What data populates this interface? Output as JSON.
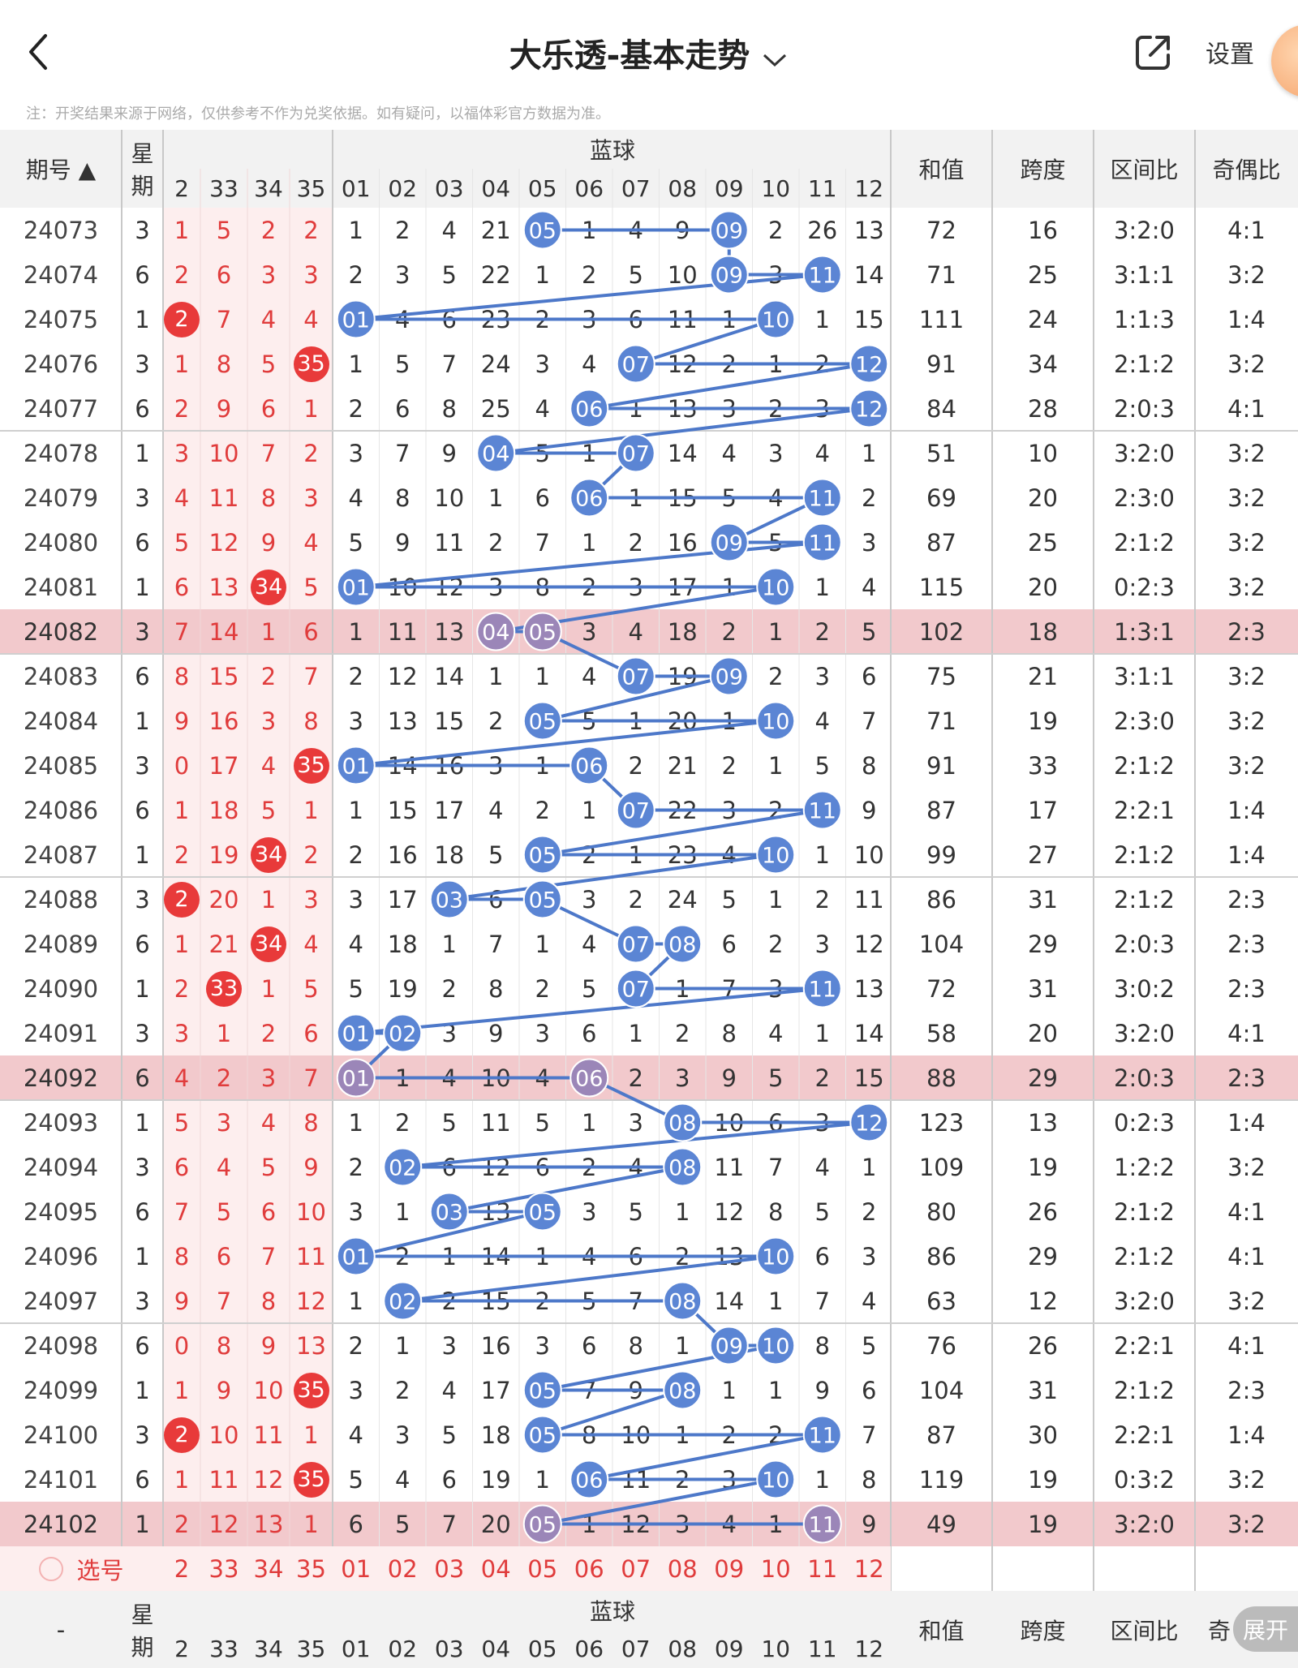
{
  "header": {
    "title": "大乐透-基本走势",
    "settings": "设置",
    "share_icon": "share-icon",
    "back_icon": "back-icon"
  },
  "notice": "注：开奖结果来源于网络，仅供参考不作为兑奖依据。如有疑问，以福体彩官方数据为准。",
  "table": {
    "col_period": "期号",
    "col_week": "星期",
    "col_blue": "蓝球",
    "col_sum": "和值",
    "col_span": "跨度",
    "col_ratio": "区间比",
    "col_oddeven": "奇偶比",
    "front_cols": [
      "2",
      "33",
      "34",
      "35"
    ],
    "blue_cols": [
      "01",
      "02",
      "03",
      "04",
      "05",
      "06",
      "07",
      "08",
      "09",
      "10",
      "11",
      "12"
    ],
    "select_label": "选号",
    "footer_period": "-",
    "footer_oddeven": "奇",
    "expand": "展开",
    "rows": [
      {
        "period": "24073",
        "week": "3",
        "front": [
          "1",
          "5",
          "2",
          "2"
        ],
        "fhit": [],
        "blue": [
          "1",
          "2",
          "4",
          "21",
          "05",
          "1",
          "4",
          "9",
          "09",
          "2",
          "26",
          "13"
        ],
        "bhit": [
          4,
          8
        ],
        "sum": "72",
        "span": "16",
        "ratio": "3:2:0",
        "oe": "4:1"
      },
      {
        "period": "24074",
        "week": "6",
        "front": [
          "2",
          "6",
          "3",
          "3"
        ],
        "fhit": [],
        "blue": [
          "2",
          "3",
          "5",
          "22",
          "1",
          "2",
          "5",
          "10",
          "09",
          "3",
          "11",
          "14"
        ],
        "bhit": [
          8,
          10
        ],
        "sum": "71",
        "span": "25",
        "ratio": "3:1:1",
        "oe": "3:2"
      },
      {
        "period": "24075",
        "week": "1",
        "front": [
          "2",
          "7",
          "4",
          "4"
        ],
        "fhit": [
          0
        ],
        "blue": [
          "01",
          "4",
          "6",
          "23",
          "2",
          "3",
          "6",
          "11",
          "1",
          "10",
          "1",
          "15"
        ],
        "bhit": [
          0,
          9
        ],
        "sum": "111",
        "span": "24",
        "ratio": "1:1:3",
        "oe": "1:4"
      },
      {
        "period": "24076",
        "week": "3",
        "front": [
          "1",
          "8",
          "5",
          "35"
        ],
        "fhit": [
          3
        ],
        "blue": [
          "1",
          "5",
          "7",
          "24",
          "3",
          "4",
          "07",
          "12",
          "2",
          "1",
          "2",
          "12"
        ],
        "bhit": [
          6,
          11
        ],
        "sum": "91",
        "span": "34",
        "ratio": "2:1:2",
        "oe": "3:2"
      },
      {
        "period": "24077",
        "week": "6",
        "front": [
          "2",
          "9",
          "6",
          "1"
        ],
        "fhit": [],
        "blue": [
          "2",
          "6",
          "8",
          "25",
          "4",
          "06",
          "1",
          "13",
          "3",
          "2",
          "3",
          "12"
        ],
        "bhit": [
          5,
          11
        ],
        "sum": "84",
        "span": "28",
        "ratio": "2:0:3",
        "oe": "4:1"
      },
      {
        "period": "24078",
        "week": "1",
        "front": [
          "3",
          "10",
          "7",
          "2"
        ],
        "fhit": [],
        "blue": [
          "3",
          "7",
          "9",
          "04",
          "5",
          "1",
          "07",
          "14",
          "4",
          "3",
          "4",
          "1"
        ],
        "bhit": [
          3,
          6
        ],
        "sum": "51",
        "span": "10",
        "ratio": "3:2:0",
        "oe": "3:2"
      },
      {
        "period": "24079",
        "week": "3",
        "front": [
          "4",
          "11",
          "8",
          "3"
        ],
        "fhit": [],
        "blue": [
          "4",
          "8",
          "10",
          "1",
          "6",
          "06",
          "1",
          "15",
          "5",
          "4",
          "11",
          "2"
        ],
        "bhit": [
          5,
          10
        ],
        "sum": "69",
        "span": "20",
        "ratio": "2:3:0",
        "oe": "3:2"
      },
      {
        "period": "24080",
        "week": "6",
        "front": [
          "5",
          "12",
          "9",
          "4"
        ],
        "fhit": [],
        "blue": [
          "5",
          "9",
          "11",
          "2",
          "7",
          "1",
          "2",
          "16",
          "09",
          "5",
          "11",
          "3"
        ],
        "bhit": [
          8,
          10
        ],
        "sum": "87",
        "span": "25",
        "ratio": "2:1:2",
        "oe": "3:2"
      },
      {
        "period": "24081",
        "week": "1",
        "front": [
          "6",
          "13",
          "34",
          "5"
        ],
        "fhit": [
          2
        ],
        "blue": [
          "01",
          "10",
          "12",
          "3",
          "8",
          "2",
          "3",
          "17",
          "1",
          "10",
          "1",
          "4"
        ],
        "bhit": [
          0,
          9
        ],
        "sum": "115",
        "span": "20",
        "ratio": "0:2:3",
        "oe": "3:2"
      },
      {
        "period": "24082",
        "week": "3",
        "front": [
          "7",
          "14",
          "1",
          "6"
        ],
        "fhit": [],
        "blue": [
          "1",
          "11",
          "13",
          "04",
          "05",
          "3",
          "4",
          "18",
          "2",
          "1",
          "2",
          "5"
        ],
        "bhit": [
          3,
          4
        ],
        "sum": "102",
        "span": "18",
        "ratio": "1:3:1",
        "oe": "2:3",
        "hl": true
      },
      {
        "period": "24083",
        "week": "6",
        "front": [
          "8",
          "15",
          "2",
          "7"
        ],
        "fhit": [],
        "blue": [
          "2",
          "12",
          "14",
          "1",
          "1",
          "4",
          "07",
          "19",
          "09",
          "2",
          "3",
          "6"
        ],
        "bhit": [
          6,
          8
        ],
        "sum": "75",
        "span": "21",
        "ratio": "3:1:1",
        "oe": "3:2"
      },
      {
        "period": "24084",
        "week": "1",
        "front": [
          "9",
          "16",
          "3",
          "8"
        ],
        "fhit": [],
        "blue": [
          "3",
          "13",
          "15",
          "2",
          "05",
          "5",
          "1",
          "20",
          "1",
          "10",
          "4",
          "7"
        ],
        "bhit": [
          4,
          9
        ],
        "sum": "71",
        "span": "19",
        "ratio": "2:3:0",
        "oe": "3:2"
      },
      {
        "period": "24085",
        "week": "3",
        "front": [
          "0",
          "17",
          "4",
          "35"
        ],
        "fhit": [
          3
        ],
        "blue": [
          "01",
          "14",
          "16",
          "3",
          "1",
          "06",
          "2",
          "21",
          "2",
          "1",
          "5",
          "8"
        ],
        "bhit": [
          0,
          5
        ],
        "sum": "91",
        "span": "33",
        "ratio": "2:1:2",
        "oe": "3:2"
      },
      {
        "period": "24086",
        "week": "6",
        "front": [
          "1",
          "18",
          "5",
          "1"
        ],
        "fhit": [],
        "blue": [
          "1",
          "15",
          "17",
          "4",
          "2",
          "1",
          "07",
          "22",
          "3",
          "2",
          "11",
          "9"
        ],
        "bhit": [
          6,
          10
        ],
        "sum": "87",
        "span": "17",
        "ratio": "2:2:1",
        "oe": "1:4"
      },
      {
        "period": "24087",
        "week": "1",
        "front": [
          "2",
          "19",
          "34",
          "2"
        ],
        "fhit": [
          2
        ],
        "blue": [
          "2",
          "16",
          "18",
          "5",
          "05",
          "2",
          "1",
          "23",
          "4",
          "10",
          "1",
          "10"
        ],
        "bhit": [
          4,
          9
        ],
        "sum": "99",
        "span": "27",
        "ratio": "2:1:2",
        "oe": "1:4"
      },
      {
        "period": "24088",
        "week": "3",
        "front": [
          "2",
          "20",
          "1",
          "3"
        ],
        "fhit": [
          0
        ],
        "blue": [
          "3",
          "17",
          "03",
          "6",
          "05",
          "3",
          "2",
          "24",
          "5",
          "1",
          "2",
          "11"
        ],
        "bhit": [
          2,
          4
        ],
        "sum": "86",
        "span": "31",
        "ratio": "2:1:2",
        "oe": "2:3"
      },
      {
        "period": "24089",
        "week": "6",
        "front": [
          "1",
          "21",
          "34",
          "4"
        ],
        "fhit": [
          2
        ],
        "blue": [
          "4",
          "18",
          "1",
          "7",
          "1",
          "4",
          "07",
          "08",
          "6",
          "2",
          "3",
          "12"
        ],
        "bhit": [
          6,
          7
        ],
        "sum": "104",
        "span": "29",
        "ratio": "2:0:3",
        "oe": "2:3"
      },
      {
        "period": "24090",
        "week": "1",
        "front": [
          "2",
          "33",
          "1",
          "5"
        ],
        "fhit": [
          1
        ],
        "blue": [
          "5",
          "19",
          "2",
          "8",
          "2",
          "5",
          "07",
          "1",
          "7",
          "3",
          "11",
          "13"
        ],
        "bhit": [
          6,
          10
        ],
        "sum": "72",
        "span": "31",
        "ratio": "3:0:2",
        "oe": "2:3"
      },
      {
        "period": "24091",
        "week": "3",
        "front": [
          "3",
          "1",
          "2",
          "6"
        ],
        "fhit": [],
        "blue": [
          "01",
          "02",
          "3",
          "9",
          "3",
          "6",
          "1",
          "2",
          "8",
          "4",
          "1",
          "14"
        ],
        "bhit": [
          0,
          1
        ],
        "sum": "58",
        "span": "20",
        "ratio": "3:2:0",
        "oe": "4:1"
      },
      {
        "period": "24092",
        "week": "6",
        "front": [
          "4",
          "2",
          "3",
          "7"
        ],
        "fhit": [],
        "blue": [
          "01",
          "1",
          "4",
          "10",
          "4",
          "06",
          "2",
          "3",
          "9",
          "5",
          "2",
          "15"
        ],
        "bhit": [
          0,
          5
        ],
        "sum": "88",
        "span": "29",
        "ratio": "2:0:3",
        "oe": "2:3",
        "hl": true
      },
      {
        "period": "24093",
        "week": "1",
        "front": [
          "5",
          "3",
          "4",
          "8"
        ],
        "fhit": [],
        "blue": [
          "1",
          "2",
          "5",
          "11",
          "5",
          "1",
          "3",
          "08",
          "10",
          "6",
          "3",
          "12"
        ],
        "bhit": [
          7,
          11
        ],
        "sum": "123",
        "span": "13",
        "ratio": "0:2:3",
        "oe": "1:4"
      },
      {
        "period": "24094",
        "week": "3",
        "front": [
          "6",
          "4",
          "5",
          "9"
        ],
        "fhit": [],
        "blue": [
          "2",
          "02",
          "6",
          "12",
          "6",
          "2",
          "4",
          "08",
          "11",
          "7",
          "4",
          "1"
        ],
        "bhit": [
          1,
          7
        ],
        "sum": "109",
        "span": "19",
        "ratio": "1:2:2",
        "oe": "3:2"
      },
      {
        "period": "24095",
        "week": "6",
        "front": [
          "7",
          "5",
          "6",
          "10"
        ],
        "fhit": [],
        "blue": [
          "3",
          "1",
          "03",
          "13",
          "05",
          "3",
          "5",
          "1",
          "12",
          "8",
          "5",
          "2"
        ],
        "bhit": [
          2,
          4
        ],
        "sum": "80",
        "span": "26",
        "ratio": "2:1:2",
        "oe": "4:1"
      },
      {
        "period": "24096",
        "week": "1",
        "front": [
          "8",
          "6",
          "7",
          "11"
        ],
        "fhit": [],
        "blue": [
          "01",
          "2",
          "1",
          "14",
          "1",
          "4",
          "6",
          "2",
          "13",
          "10",
          "6",
          "3"
        ],
        "bhit": [
          0,
          9
        ],
        "sum": "86",
        "span": "29",
        "ratio": "2:1:2",
        "oe": "4:1"
      },
      {
        "period": "24097",
        "week": "3",
        "front": [
          "9",
          "7",
          "8",
          "12"
        ],
        "fhit": [],
        "blue": [
          "1",
          "02",
          "2",
          "15",
          "2",
          "5",
          "7",
          "08",
          "14",
          "1",
          "7",
          "4"
        ],
        "bhit": [
          1,
          7
        ],
        "sum": "63",
        "span": "12",
        "ratio": "3:2:0",
        "oe": "3:2"
      },
      {
        "period": "24098",
        "week": "6",
        "front": [
          "0",
          "8",
          "9",
          "13"
        ],
        "fhit": [],
        "blue": [
          "2",
          "1",
          "3",
          "16",
          "3",
          "6",
          "8",
          "1",
          "09",
          "10",
          "8",
          "5"
        ],
        "bhit": [
          8,
          9
        ],
        "sum": "76",
        "span": "26",
        "ratio": "2:2:1",
        "oe": "4:1"
      },
      {
        "period": "24099",
        "week": "1",
        "front": [
          "1",
          "9",
          "10",
          "35"
        ],
        "fhit": [
          3
        ],
        "blue": [
          "3",
          "2",
          "4",
          "17",
          "05",
          "7",
          "9",
          "08",
          "1",
          "1",
          "9",
          "6"
        ],
        "bhit": [
          4,
          7
        ],
        "sum": "104",
        "span": "31",
        "ratio": "2:1:2",
        "oe": "2:3"
      },
      {
        "period": "24100",
        "week": "3",
        "front": [
          "2",
          "10",
          "11",
          "1"
        ],
        "fhit": [
          0
        ],
        "blue": [
          "4",
          "3",
          "5",
          "18",
          "05",
          "8",
          "10",
          "1",
          "2",
          "2",
          "11",
          "7"
        ],
        "bhit": [
          4,
          10
        ],
        "sum": "87",
        "span": "30",
        "ratio": "2:2:1",
        "oe": "1:4"
      },
      {
        "period": "24101",
        "week": "6",
        "front": [
          "1",
          "11",
          "12",
          "35"
        ],
        "fhit": [
          3
        ],
        "blue": [
          "5",
          "4",
          "6",
          "19",
          "1",
          "06",
          "11",
          "2",
          "3",
          "10",
          "1",
          "8"
        ],
        "bhit": [
          5,
          9
        ],
        "sum": "119",
        "span": "19",
        "ratio": "0:3:2",
        "oe": "3:2"
      },
      {
        "period": "24102",
        "week": "1",
        "front": [
          "2",
          "12",
          "13",
          "1"
        ],
        "fhit": [],
        "blue": [
          "6",
          "5",
          "7",
          "20",
          "05",
          "1",
          "12",
          "3",
          "4",
          "1",
          "11",
          "9"
        ],
        "bhit": [
          4,
          10
        ],
        "sum": "49",
        "span": "19",
        "ratio": "3:2:0",
        "oe": "3:2",
        "hl": true
      }
    ]
  },
  "colors": {
    "blue_ball": "#5b85d4",
    "blue_ball_dim": "#9b86b8",
    "red_ball": "#e83a3a",
    "line": "#4d78c9",
    "highlight": "#f2c9cc",
    "front_bg": "#fdeeee",
    "header_bg": "#f2f2f2"
  }
}
